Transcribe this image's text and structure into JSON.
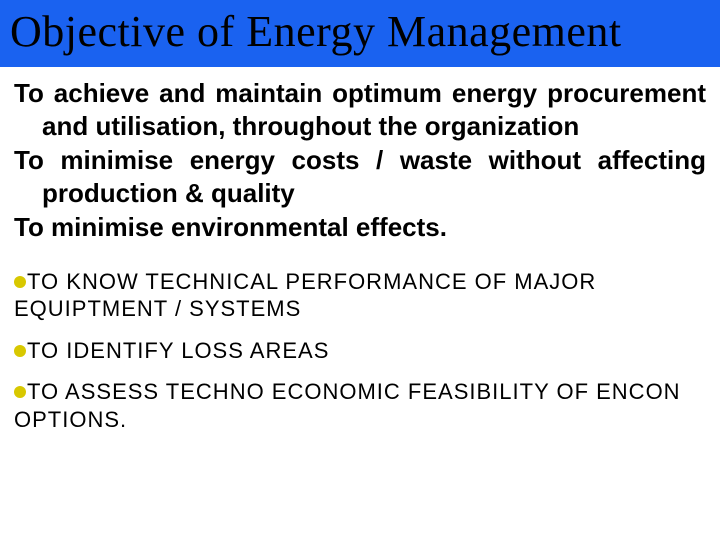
{
  "colors": {
    "title_bg": "#1a62f0",
    "title_text": "#000000",
    "body_text": "#000000",
    "bullet_dot": "#d8c800"
  },
  "title": "Objective of Energy Management",
  "objectives": [
    "To achieve and maintain optimum energy procurement and utilisation, throughout the organization",
    "To minimise energy costs / waste without affecting production & quality",
    "To minimise environmental effects."
  ],
  "bullets": [
    "TO KNOW TECHNICAL PERFORMANCE OF MAJOR EQUIPTMENT / SYSTEMS",
    "TO IDENTIFY LOSS AREAS",
    "TO ASSESS TECHNO ECONOMIC FEASIBILITY OF ENCON OPTIONS."
  ]
}
